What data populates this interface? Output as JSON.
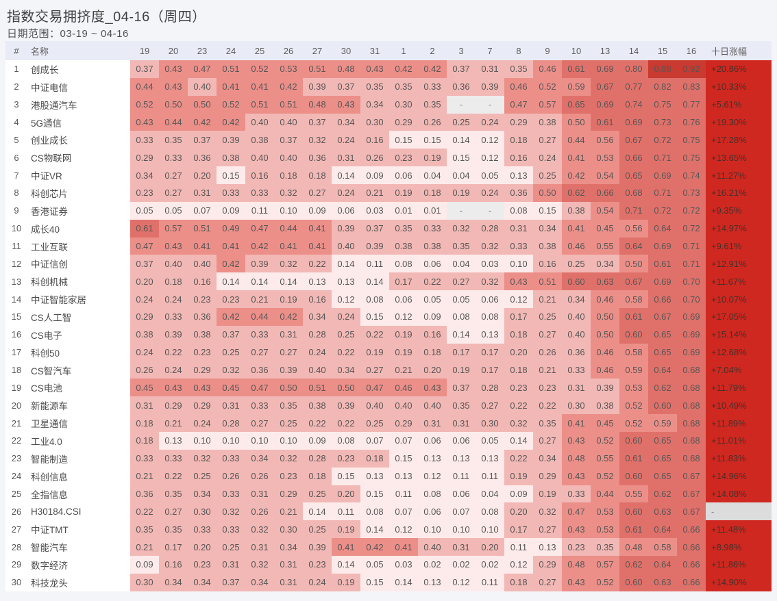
{
  "title": "指数交易拥挤度_04-16（周四）",
  "subtitle": "日期范围：03-19 ~ 04-16",
  "table": {
    "index_header": "#",
    "name_header": "名称",
    "gain_header": "十日涨幅",
    "missing_marker": "-"
  },
  "colors": {
    "page_bg": "#f4f5f9",
    "header_bg": "#e9ecf7",
    "row_bg": "#ffffff",
    "gain_bg": "#cf2820",
    "gain_missing_bg": "#dcdcdc",
    "missing_bg": "#ececec",
    "scale_bins": [
      {
        "max": 0.155,
        "color": "#fcebea"
      },
      {
        "max": 0.405,
        "color": "#f2b8b5"
      },
      {
        "max": 0.595,
        "color": "#ec8f89"
      },
      {
        "max": 0.845,
        "color": "#e0716a"
      },
      {
        "max": 1.0,
        "color": "#c93a30"
      }
    ]
  },
  "chart_data": {
    "type": "heatmap",
    "title": "指数交易拥挤度_04-16（周四）",
    "subtitle": "日期范围：03-19 ~ 04-16",
    "x_labels": [
      "19",
      "20",
      "23",
      "24",
      "25",
      "26",
      "27",
      "30",
      "31",
      "1",
      "2",
      "3",
      "7",
      "8",
      "9",
      "10",
      "13",
      "14",
      "15",
      "16"
    ],
    "value_range": [
      0,
      1
    ],
    "gain_label": "十日涨幅",
    "rows": [
      {
        "rank": 1,
        "name": "创成长",
        "values": [
          0.37,
          0.43,
          0.47,
          0.51,
          0.52,
          0.53,
          0.51,
          0.48,
          0.43,
          0.42,
          0.42,
          0.37,
          0.31,
          0.35,
          0.46,
          0.61,
          0.69,
          0.8,
          0.88,
          0.92
        ],
        "gain": "+20.86%"
      },
      {
        "rank": 2,
        "name": "中证电信",
        "values": [
          0.44,
          0.43,
          0.4,
          0.41,
          0.41,
          0.42,
          0.39,
          0.37,
          0.35,
          0.35,
          0.33,
          0.36,
          0.39,
          0.46,
          0.52,
          0.59,
          0.67,
          0.77,
          0.82,
          0.83
        ],
        "gain": "+10.33%"
      },
      {
        "rank": 3,
        "name": "港股通汽车",
        "values": [
          0.52,
          0.5,
          0.5,
          0.52,
          0.51,
          0.51,
          0.48,
          0.43,
          0.34,
          0.3,
          0.35,
          null,
          null,
          0.47,
          0.57,
          0.65,
          0.69,
          0.74,
          0.75,
          0.77
        ],
        "gain": "+5.61%"
      },
      {
        "rank": 4,
        "name": "5G通信",
        "values": [
          0.43,
          0.44,
          0.42,
          0.42,
          0.4,
          0.4,
          0.37,
          0.34,
          0.3,
          0.29,
          0.26,
          0.25,
          0.24,
          0.29,
          0.38,
          0.5,
          0.61,
          0.69,
          0.73,
          0.76
        ],
        "gain": "+19.30%"
      },
      {
        "rank": 5,
        "name": "创业成长",
        "values": [
          0.33,
          0.35,
          0.37,
          0.39,
          0.38,
          0.37,
          0.32,
          0.24,
          0.16,
          0.15,
          0.15,
          0.14,
          0.12,
          0.18,
          0.27,
          0.44,
          0.56,
          0.67,
          0.72,
          0.75
        ],
        "gain": "+17.28%"
      },
      {
        "rank": 6,
        "name": "CS物联网",
        "values": [
          0.29,
          0.33,
          0.36,
          0.38,
          0.4,
          0.4,
          0.36,
          0.31,
          0.26,
          0.23,
          0.19,
          0.15,
          0.12,
          0.16,
          0.24,
          0.41,
          0.53,
          0.66,
          0.71,
          0.75
        ],
        "gain": "+13.65%"
      },
      {
        "rank": 7,
        "name": "中证VR",
        "values": [
          0.34,
          0.27,
          0.2,
          0.15,
          0.16,
          0.18,
          0.18,
          0.14,
          0.09,
          0.06,
          0.04,
          0.04,
          0.05,
          0.13,
          0.25,
          0.42,
          0.54,
          0.65,
          0.69,
          0.74
        ],
        "gain": "+11.27%"
      },
      {
        "rank": 8,
        "name": "科创芯片",
        "values": [
          0.23,
          0.27,
          0.31,
          0.33,
          0.33,
          0.32,
          0.27,
          0.24,
          0.21,
          0.19,
          0.18,
          0.19,
          0.24,
          0.36,
          0.5,
          0.62,
          0.66,
          0.68,
          0.71,
          0.73
        ],
        "gain": "+16.21%"
      },
      {
        "rank": 9,
        "name": "香港证券",
        "values": [
          0.05,
          0.05,
          0.07,
          0.09,
          0.11,
          0.1,
          0.09,
          0.06,
          0.03,
          0.01,
          0.01,
          null,
          null,
          0.08,
          0.15,
          0.38,
          0.54,
          0.71,
          0.72,
          0.72
        ],
        "gain": "+9.35%"
      },
      {
        "rank": 10,
        "name": "成长40",
        "values": [
          0.61,
          0.57,
          0.51,
          0.49,
          0.47,
          0.44,
          0.41,
          0.39,
          0.37,
          0.35,
          0.33,
          0.32,
          0.28,
          0.31,
          0.34,
          0.41,
          0.45,
          0.56,
          0.64,
          0.72
        ],
        "gain": "+14.97%"
      },
      {
        "rank": 11,
        "name": "工业互联",
        "values": [
          0.47,
          0.43,
          0.41,
          0.41,
          0.42,
          0.41,
          0.41,
          0.4,
          0.39,
          0.38,
          0.38,
          0.35,
          0.32,
          0.33,
          0.38,
          0.46,
          0.55,
          0.64,
          0.69,
          0.71
        ],
        "gain": "+9.61%"
      },
      {
        "rank": 12,
        "name": "中证信创",
        "values": [
          0.37,
          0.4,
          0.4,
          0.42,
          0.39,
          0.32,
          0.22,
          0.14,
          0.11,
          0.08,
          0.06,
          0.04,
          0.03,
          0.1,
          0.16,
          0.25,
          0.34,
          0.5,
          0.61,
          0.71
        ],
        "gain": "+12.91%"
      },
      {
        "rank": 13,
        "name": "科创机械",
        "values": [
          0.2,
          0.18,
          0.16,
          0.14,
          0.14,
          0.14,
          0.13,
          0.13,
          0.14,
          0.17,
          0.22,
          0.27,
          0.32,
          0.43,
          0.51,
          0.6,
          0.63,
          0.67,
          0.69,
          0.7
        ],
        "gain": "+11.67%"
      },
      {
        "rank": 14,
        "name": "中证智能家居",
        "values": [
          0.24,
          0.24,
          0.23,
          0.23,
          0.21,
          0.19,
          0.16,
          0.12,
          0.08,
          0.06,
          0.05,
          0.05,
          0.06,
          0.12,
          0.21,
          0.34,
          0.46,
          0.58,
          0.66,
          0.7
        ],
        "gain": "+10.07%"
      },
      {
        "rank": 15,
        "name": "CS人工智",
        "values": [
          0.29,
          0.33,
          0.36,
          0.42,
          0.44,
          0.42,
          0.34,
          0.24,
          0.15,
          0.12,
          0.09,
          0.08,
          0.08,
          0.17,
          0.25,
          0.4,
          0.5,
          0.61,
          0.67,
          0.69
        ],
        "gain": "+17.05%"
      },
      {
        "rank": 16,
        "name": "CS电子",
        "values": [
          0.38,
          0.39,
          0.38,
          0.37,
          0.33,
          0.31,
          0.28,
          0.25,
          0.22,
          0.19,
          0.16,
          0.14,
          0.13,
          0.18,
          0.27,
          0.4,
          0.5,
          0.6,
          0.65,
          0.69
        ],
        "gain": "+15.14%"
      },
      {
        "rank": 17,
        "name": "科创50",
        "values": [
          0.24,
          0.22,
          0.23,
          0.25,
          0.27,
          0.27,
          0.24,
          0.22,
          0.19,
          0.19,
          0.18,
          0.17,
          0.17,
          0.2,
          0.26,
          0.36,
          0.46,
          0.58,
          0.65,
          0.69
        ],
        "gain": "+12.68%"
      },
      {
        "rank": 18,
        "name": "CS智汽车",
        "values": [
          0.26,
          0.24,
          0.29,
          0.32,
          0.36,
          0.39,
          0.4,
          0.34,
          0.27,
          0.21,
          0.2,
          0.19,
          0.17,
          0.18,
          0.21,
          0.33,
          0.46,
          0.59,
          0.64,
          0.68
        ],
        "gain": "+7.04%"
      },
      {
        "rank": 19,
        "name": "CS电池",
        "values": [
          0.45,
          0.43,
          0.43,
          0.45,
          0.47,
          0.5,
          0.51,
          0.5,
          0.47,
          0.46,
          0.43,
          0.37,
          0.28,
          0.23,
          0.23,
          0.31,
          0.39,
          0.53,
          0.62,
          0.68
        ],
        "gain": "+11.79%"
      },
      {
        "rank": 20,
        "name": "新能源车",
        "values": [
          0.31,
          0.29,
          0.29,
          0.31,
          0.33,
          0.35,
          0.38,
          0.39,
          0.4,
          0.4,
          0.4,
          0.35,
          0.27,
          0.22,
          0.22,
          0.3,
          0.38,
          0.52,
          0.6,
          0.68
        ],
        "gain": "+10.49%"
      },
      {
        "rank": 21,
        "name": "卫星通信",
        "values": [
          0.18,
          0.21,
          0.24,
          0.28,
          0.27,
          0.25,
          0.22,
          0.22,
          0.25,
          0.29,
          0.31,
          0.31,
          0.3,
          0.32,
          0.35,
          0.41,
          0.45,
          0.52,
          0.59,
          0.68
        ],
        "gain": "+11.89%"
      },
      {
        "rank": 22,
        "name": "工业4.0",
        "values": [
          0.18,
          0.13,
          0.1,
          0.1,
          0.1,
          0.1,
          0.09,
          0.08,
          0.07,
          0.07,
          0.06,
          0.06,
          0.05,
          0.14,
          0.27,
          0.43,
          0.52,
          0.6,
          0.65,
          0.68
        ],
        "gain": "+11.01%"
      },
      {
        "rank": 23,
        "name": "智能制造",
        "values": [
          0.33,
          0.33,
          0.32,
          0.33,
          0.34,
          0.32,
          0.28,
          0.23,
          0.18,
          0.15,
          0.13,
          0.13,
          0.13,
          0.22,
          0.34,
          0.48,
          0.55,
          0.61,
          0.65,
          0.68
        ],
        "gain": "+11.83%"
      },
      {
        "rank": 24,
        "name": "科创信息",
        "values": [
          0.21,
          0.22,
          0.25,
          0.26,
          0.26,
          0.23,
          0.18,
          0.15,
          0.13,
          0.13,
          0.12,
          0.11,
          0.11,
          0.19,
          0.29,
          0.43,
          0.52,
          0.6,
          0.65,
          0.67
        ],
        "gain": "+14.96%"
      },
      {
        "rank": 25,
        "name": "全指信息",
        "values": [
          0.36,
          0.35,
          0.34,
          0.33,
          0.31,
          0.29,
          0.25,
          0.2,
          0.15,
          0.11,
          0.08,
          0.06,
          0.04,
          0.09,
          0.19,
          0.33,
          0.44,
          0.55,
          0.62,
          0.67
        ],
        "gain": "+14.08%"
      },
      {
        "rank": 26,
        "name": "H30184.CSI",
        "values": [
          0.22,
          0.27,
          0.3,
          0.32,
          0.26,
          0.21,
          0.14,
          0.11,
          0.08,
          0.07,
          0.06,
          0.07,
          0.08,
          0.2,
          0.32,
          0.47,
          0.53,
          0.6,
          0.63,
          0.67
        ],
        "gain": "-"
      },
      {
        "rank": 27,
        "name": "中证TMT",
        "values": [
          0.35,
          0.35,
          0.33,
          0.33,
          0.32,
          0.3,
          0.25,
          0.19,
          0.14,
          0.12,
          0.1,
          0.1,
          0.1,
          0.17,
          0.27,
          0.43,
          0.53,
          0.61,
          0.64,
          0.66
        ],
        "gain": "+11.48%"
      },
      {
        "rank": 28,
        "name": "智能汽车",
        "values": [
          0.21,
          0.17,
          0.2,
          0.25,
          0.31,
          0.34,
          0.39,
          0.41,
          0.42,
          0.41,
          0.4,
          0.31,
          0.2,
          0.11,
          0.13,
          0.23,
          0.35,
          0.48,
          0.58,
          0.66
        ],
        "gain": "+8.98%"
      },
      {
        "rank": 29,
        "name": "数字经济",
        "values": [
          0.09,
          0.16,
          0.23,
          0.31,
          0.32,
          0.31,
          0.23,
          0.14,
          0.05,
          0.03,
          0.02,
          0.02,
          0.02,
          0.12,
          0.29,
          0.48,
          0.57,
          0.62,
          0.64,
          0.66
        ],
        "gain": "+11.86%"
      },
      {
        "rank": 30,
        "name": "科技龙头",
        "values": [
          0.3,
          0.34,
          0.34,
          0.37,
          0.34,
          0.31,
          0.24,
          0.19,
          0.15,
          0.14,
          0.13,
          0.12,
          0.11,
          0.18,
          0.27,
          0.43,
          0.52,
          0.6,
          0.63,
          0.66
        ],
        "gain": "+14.90%"
      }
    ]
  }
}
